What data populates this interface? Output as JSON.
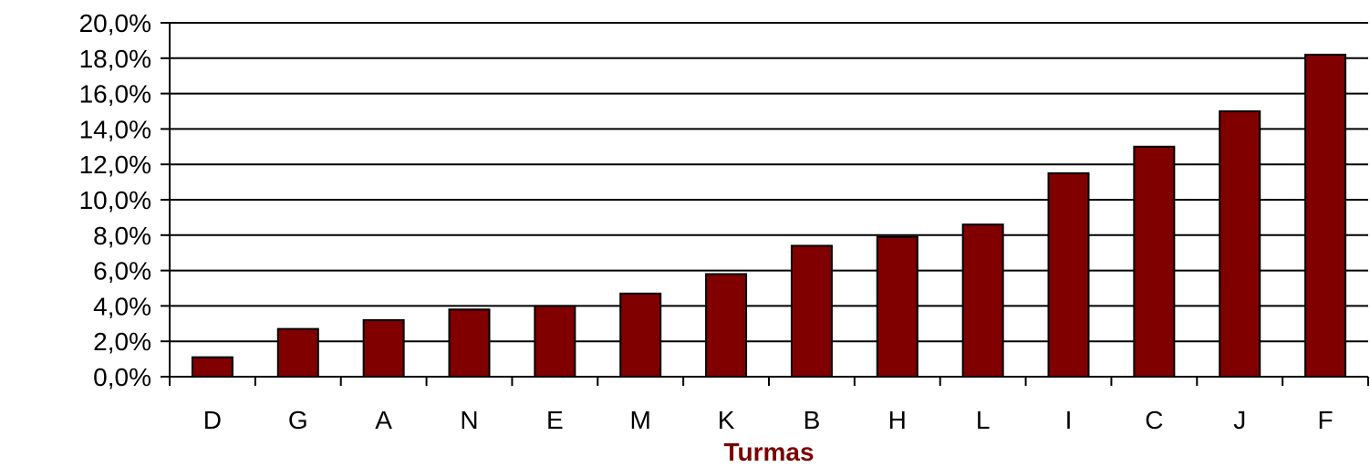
{
  "chart_data": {
    "type": "bar",
    "title": "",
    "xlabel": "Turmas",
    "ylabel": "",
    "categories": [
      "D",
      "G",
      "A",
      "N",
      "E",
      "M",
      "K",
      "B",
      "H",
      "L",
      "I",
      "C",
      "J",
      "F"
    ],
    "values": [
      1.1,
      2.7,
      3.2,
      3.8,
      4.0,
      4.7,
      5.8,
      7.4,
      7.9,
      8.6,
      11.5,
      13.0,
      15.0,
      18.2
    ],
    "ylim": [
      0,
      20
    ],
    "yticks": [
      0,
      2,
      4,
      6,
      8,
      10,
      12,
      14,
      16,
      18,
      20
    ],
    "ytick_labels": [
      "0,0%",
      "2,0%",
      "4,0%",
      "6,0%",
      "8,0%",
      "10,0%",
      "12,0%",
      "14,0%",
      "16,0%",
      "18,0%",
      "20,0%"
    ],
    "grid": true,
    "legend": "none",
    "colors": {
      "bar": "#800000",
      "bar_edge": "#000000",
      "xlabel": "#7b0000",
      "grid": "#000000"
    }
  }
}
